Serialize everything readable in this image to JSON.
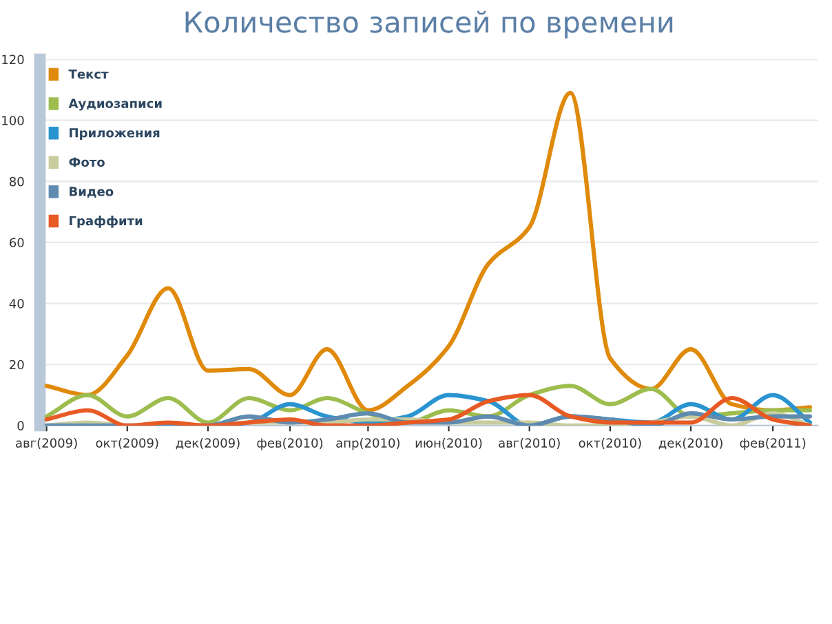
{
  "chart_data": {
    "type": "line",
    "title": "Количество записей по времени",
    "x": [
      "2009-08",
      "2009-09",
      "2009-10",
      "2009-11",
      "2009-12",
      "2010-01",
      "2010-02",
      "2010-03",
      "2010-04",
      "2010-05",
      "2010-06",
      "2010-07",
      "2010-08",
      "2010-09",
      "2010-10",
      "2010-11",
      "2010-12",
      "2011-01",
      "2011-02",
      "2011-03"
    ],
    "series": [
      {
        "name": "Текст",
        "color": "#e08a0c",
        "values": [
          13,
          10,
          23,
          45,
          18,
          18.5,
          10,
          25,
          5,
          13,
          26,
          53,
          65,
          109,
          22,
          12,
          25,
          7,
          5,
          6
        ]
      },
      {
        "name": "Аудиозаписи",
        "color": "#9dbd4f",
        "values": [
          3,
          10,
          3,
          9,
          1,
          9,
          5,
          9,
          4,
          1,
          5,
          3,
          10,
          13,
          7,
          12,
          3,
          4,
          5,
          5
        ]
      },
      {
        "name": "Приложения",
        "color": "#2a94d0",
        "values": [
          null,
          null,
          null,
          0,
          0,
          1,
          7,
          3,
          1,
          3,
          10,
          8,
          0,
          3,
          2,
          1,
          7,
          2,
          10,
          1
        ]
      },
      {
        "name": "Фото",
        "color": "#c9cc9e",
        "values": [
          0,
          1,
          0,
          0,
          0,
          1,
          1,
          1,
          2,
          2,
          1,
          1,
          1,
          0,
          0,
          1,
          3,
          0,
          4,
          0
        ]
      },
      {
        "name": "Видео",
        "color": "#5f8bb0",
        "values": [
          0,
          0,
          0,
          0,
          0,
          3,
          1,
          2,
          4,
          1,
          1,
          3,
          0,
          3,
          2,
          0,
          4,
          2,
          3,
          3
        ]
      },
      {
        "name": "Граффити",
        "color": "#e85a24",
        "values": [
          2,
          5,
          0,
          1,
          0,
          1,
          2,
          0,
          0,
          1,
          2,
          8,
          10,
          3,
          1,
          1,
          1,
          9,
          2,
          0
        ]
      }
    ],
    "xlim": [
      "2009-07-27",
      "2011-03-07"
    ],
    "xticks": [
      {
        "value": "2009-08",
        "label": "авг(2009)"
      },
      {
        "value": "2009-10",
        "label": "окт(2009)"
      },
      {
        "value": "2009-12",
        "label": "дек(2009)"
      },
      {
        "value": "2010-02",
        "label": "фев(2010)"
      },
      {
        "value": "2010-04",
        "label": "апр(2010)"
      },
      {
        "value": "2010-06",
        "label": "июн(2010)"
      },
      {
        "value": "2010-08",
        "label": "авг(2010)"
      },
      {
        "value": "2010-10",
        "label": "окт(2010)"
      },
      {
        "value": "2010-12",
        "label": "дек(2010)"
      },
      {
        "value": "2011-02",
        "label": "фев(2011)"
      }
    ],
    "ylim": [
      0,
      120
    ],
    "yticks": [
      0,
      20,
      40,
      60,
      80,
      100,
      120
    ],
    "grid": "y",
    "legend": "top left",
    "marker": "none",
    "line_style": "solid"
  }
}
